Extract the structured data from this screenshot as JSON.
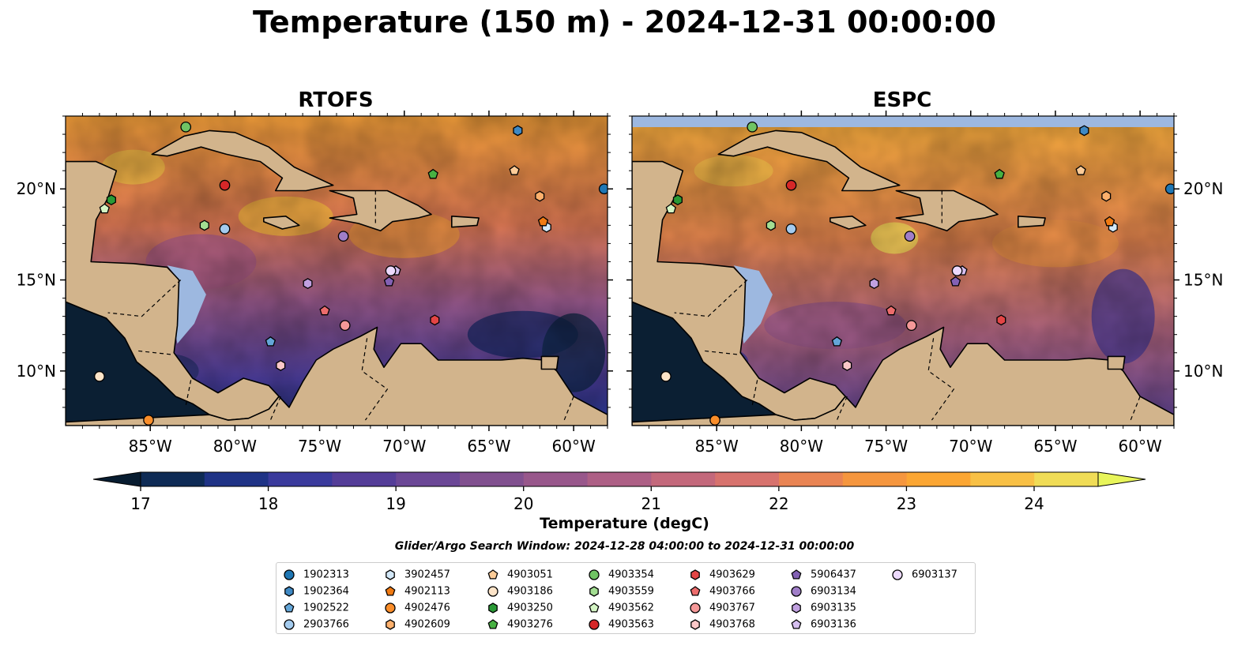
{
  "title": "Temperature (150 m) - 2024-12-31 00:00:00",
  "panels": [
    {
      "title": "RTOFS"
    },
    {
      "title": "ESPC"
    }
  ],
  "map": {
    "lon_range": [
      -90,
      -58
    ],
    "lat_range": [
      7,
      24
    ],
    "lon_ticks": [
      "85°W",
      "80°W",
      "75°W",
      "70°W",
      "65°W",
      "60°W"
    ],
    "lat_ticks": [
      "10°N",
      "15°N",
      "20°N"
    ],
    "colors": {
      "land": "#d2b48c",
      "shallow_water": "#9db8e0",
      "deep_water": "#0b1f33"
    }
  },
  "colorbar": {
    "label": "Temperature (degC)",
    "ticks": [
      "17",
      "18",
      "19",
      "20",
      "21",
      "22",
      "23",
      "24"
    ],
    "range": [
      16.5,
      24.5
    ],
    "extend": "both",
    "colors": [
      "#071c30",
      "#0e2b55",
      "#1f3386",
      "#3a3a9c",
      "#543d98",
      "#6b4796",
      "#81508f",
      "#98578b",
      "#ad5f85",
      "#c3687b",
      "#d7726d",
      "#e98453",
      "#f5963e",
      "#fba633",
      "#f8c045",
      "#f0dc56"
    ]
  },
  "search_window": "Glider/Argo Search Window: 2024-12-28 04:00:00 to 2024-12-31 00:00:00",
  "legend": [
    {
      "id": "1902313",
      "marker": "circle",
      "color": "#1f77b4"
    },
    {
      "id": "1902364",
      "marker": "hexagon",
      "color": "#3f89c4"
    },
    {
      "id": "1902522",
      "marker": "pentagon",
      "color": "#64a6d8"
    },
    {
      "id": "2903766",
      "marker": "circle",
      "color": "#a4cbee"
    },
    {
      "id": "3902457",
      "marker": "hexagon",
      "color": "#d3e8f8"
    },
    {
      "id": "4902113",
      "marker": "pentagon",
      "color": "#f07a12"
    },
    {
      "id": "4902476",
      "marker": "circle",
      "color": "#fb8e2a"
    },
    {
      "id": "4902609",
      "marker": "hexagon",
      "color": "#fdb06c"
    },
    {
      "id": "4903051",
      "marker": "pentagon",
      "color": "#fdcc98"
    },
    {
      "id": "4903186",
      "marker": "circle",
      "color": "#fde4c8"
    },
    {
      "id": "4903250",
      "marker": "hexagon",
      "color": "#2a9a36"
    },
    {
      "id": "4903276",
      "marker": "pentagon",
      "color": "#47b142"
    },
    {
      "id": "4903354",
      "marker": "circle",
      "color": "#70c464"
    },
    {
      "id": "4903559",
      "marker": "hexagon",
      "color": "#a3de92"
    },
    {
      "id": "4903562",
      "marker": "pentagon",
      "color": "#d4f5c4"
    },
    {
      "id": "4903563",
      "marker": "circle",
      "color": "#d62728"
    },
    {
      "id": "4903629",
      "marker": "hexagon",
      "color": "#e34545"
    },
    {
      "id": "4903766",
      "marker": "pentagon",
      "color": "#ec6c6c"
    },
    {
      "id": "4903767",
      "marker": "circle",
      "color": "#f59898"
    },
    {
      "id": "4903768",
      "marker": "hexagon",
      "color": "#fbc8c8"
    },
    {
      "id": "5906437",
      "marker": "pentagon",
      "color": "#8361b4"
    },
    {
      "id": "6903134",
      "marker": "circle",
      "color": "#a07ec8"
    },
    {
      "id": "6903135",
      "marker": "hexagon",
      "color": "#c0a0e0"
    },
    {
      "id": "6903136",
      "marker": "pentagon",
      "color": "#d6bff0"
    },
    {
      "id": "6903137",
      "marker": "circle",
      "color": "#ecd9fc"
    }
  ],
  "observations": [
    {
      "id": "1902313",
      "lon": -58.2,
      "lat": 20.0
    },
    {
      "id": "1902364",
      "lon": -63.3,
      "lat": 23.2
    },
    {
      "id": "1902522",
      "lon": -77.9,
      "lat": 11.6
    },
    {
      "id": "2903766",
      "lon": -80.6,
      "lat": 17.8
    },
    {
      "id": "3902457",
      "lon": -61.6,
      "lat": 17.9
    },
    {
      "id": "4902113",
      "lon": -61.8,
      "lat": 18.2
    },
    {
      "id": "4902476",
      "lon": -85.1,
      "lat": 7.3
    },
    {
      "id": "4902609",
      "lon": -62.0,
      "lat": 19.6
    },
    {
      "id": "4903051",
      "lon": -63.5,
      "lat": 21.0
    },
    {
      "id": "4903186",
      "lon": -88.0,
      "lat": 9.7
    },
    {
      "id": "4903250",
      "lon": -87.3,
      "lat": 19.4
    },
    {
      "id": "4903276",
      "lon": -68.3,
      "lat": 20.8
    },
    {
      "id": "4903354",
      "lon": -82.9,
      "lat": 23.4
    },
    {
      "id": "4903559",
      "lon": -81.8,
      "lat": 18.0
    },
    {
      "id": "4903562",
      "lon": -87.7,
      "lat": 18.9
    },
    {
      "id": "4903563",
      "lon": -80.6,
      "lat": 20.2
    },
    {
      "id": "4903629",
      "lon": -68.2,
      "lat": 12.8
    },
    {
      "id": "4903766",
      "lon": -74.7,
      "lat": 13.3
    },
    {
      "id": "4903767",
      "lon": -73.5,
      "lat": 12.5
    },
    {
      "id": "4903768",
      "lon": -77.3,
      "lat": 10.3
    },
    {
      "id": "5906437",
      "lon": -70.9,
      "lat": 14.9
    },
    {
      "id": "6903134",
      "lon": -73.6,
      "lat": 17.4
    },
    {
      "id": "6903135",
      "lon": -75.7,
      "lat": 14.8
    },
    {
      "id": "6903136",
      "lon": -70.5,
      "lat": 15.5
    },
    {
      "id": "6903137",
      "lon": -70.8,
      "lat": 15.5
    }
  ]
}
